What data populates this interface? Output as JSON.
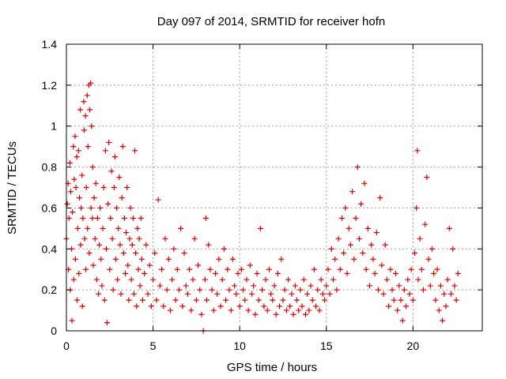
{
  "chart_data": {
    "type": "scatter",
    "title": "Day 097 of 2014, SRMTID for receiver hofn",
    "xlabel": "GPS time / hours",
    "ylabel": "SRMTID / TECUs",
    "xlim": [
      0,
      24
    ],
    "ylim": [
      0,
      1.4
    ],
    "xticks": [
      0,
      5,
      10,
      15,
      20
    ],
    "xtick_labels": [
      "0",
      "5",
      "10",
      "15",
      "20"
    ],
    "yticks": [
      0,
      0.2,
      0.4,
      0.6,
      0.8,
      1,
      1.2,
      1.4
    ],
    "ytick_labels": [
      "0",
      "0.2",
      "0.4",
      "0.6",
      "0.8",
      "1",
      "1.2",
      "1.4"
    ],
    "grid": true,
    "marker": "+",
    "colors": {
      "series": "#e00000",
      "grid": "#a0a0a0",
      "axis": "#000000"
    },
    "series": [
      {
        "name": "SRMTID",
        "points": [
          [
            0.0,
            0.45
          ],
          [
            0.05,
            0.62
          ],
          [
            0.1,
            0.72
          ],
          [
            0.12,
            0.3
          ],
          [
            0.15,
            0.55
          ],
          [
            0.2,
            0.82
          ],
          [
            0.22,
            0.2
          ],
          [
            0.25,
            0.68
          ],
          [
            0.3,
            0.4
          ],
          [
            0.32,
            0.05
          ],
          [
            0.35,
            0.58
          ],
          [
            0.4,
            0.9
          ],
          [
            0.42,
            0.25
          ],
          [
            0.45,
            0.74
          ],
          [
            0.5,
            0.95
          ],
          [
            0.52,
            0.35
          ],
          [
            0.55,
            0.7
          ],
          [
            0.6,
            0.85
          ],
          [
            0.62,
            0.15
          ],
          [
            0.65,
            0.5
          ],
          [
            0.7,
            0.88
          ],
          [
            0.72,
            0.28
          ],
          [
            0.75,
            0.65
          ],
          [
            0.8,
            1.08
          ],
          [
            0.82,
            0.42
          ],
          [
            0.85,
            0.6
          ],
          [
            0.9,
            0.76
          ],
          [
            0.92,
            0.12
          ],
          [
            0.95,
            0.55
          ],
          [
            1.0,
            1.12
          ],
          [
            1.02,
            0.98
          ],
          [
            1.05,
            0.45
          ],
          [
            1.1,
            1.05
          ],
          [
            1.12,
            0.3
          ],
          [
            1.15,
            0.7
          ],
          [
            1.2,
            1.15
          ],
          [
            1.22,
            0.5
          ],
          [
            1.25,
            0.9
          ],
          [
            1.3,
            1.2
          ],
          [
            1.32,
            0.38
          ],
          [
            1.35,
            1.08
          ],
          [
            1.4,
            1.21
          ],
          [
            1.42,
            0.6
          ],
          [
            1.45,
            1.0
          ],
          [
            1.5,
            0.55
          ],
          [
            1.52,
            0.8
          ],
          [
            1.55,
            0.32
          ],
          [
            1.6,
            0.65
          ],
          [
            1.65,
            0.45
          ],
          [
            1.7,
            0.72
          ],
          [
            1.75,
            0.25
          ],
          [
            1.8,
            0.55
          ],
          [
            1.85,
            0.18
          ],
          [
            1.9,
            0.42
          ],
          [
            1.95,
            0.6
          ],
          [
            2.0,
            0.35
          ],
          [
            2.05,
            0.22
          ],
          [
            2.1,
            0.5
          ],
          [
            2.15,
            0.7
          ],
          [
            2.2,
            0.15
          ],
          [
            2.25,
            0.88
          ],
          [
            2.3,
            0.4
          ],
          [
            2.35,
            0.04
          ],
          [
            2.4,
            0.62
          ],
          [
            2.45,
            0.92
          ],
          [
            2.5,
            0.3
          ],
          [
            2.55,
            0.55
          ],
          [
            2.6,
            0.78
          ],
          [
            2.65,
            0.45
          ],
          [
            2.7,
            0.2
          ],
          [
            2.75,
            0.7
          ],
          [
            2.8,
            0.85
          ],
          [
            2.85,
            0.35
          ],
          [
            2.9,
            0.6
          ],
          [
            2.95,
            0.25
          ],
          [
            3.0,
            0.5
          ],
          [
            3.05,
            0.75
          ],
          [
            3.1,
            0.42
          ],
          [
            3.15,
            0.18
          ],
          [
            3.2,
            0.65
          ],
          [
            3.25,
            0.9
          ],
          [
            3.3,
            0.38
          ],
          [
            3.35,
            0.55
          ],
          [
            3.4,
            0.28
          ],
          [
            3.45,
            0.48
          ],
          [
            3.5,
            0.7
          ],
          [
            3.55,
            0.32
          ],
          [
            3.6,
            0.15
          ],
          [
            3.65,
            0.45
          ],
          [
            3.7,
            0.6
          ],
          [
            3.75,
            0.25
          ],
          [
            3.8,
            0.42
          ],
          [
            3.85,
            0.55
          ],
          [
            3.9,
            0.18
          ],
          [
            3.95,
            0.88
          ],
          [
            4.0,
            0.38
          ],
          [
            4.05,
            0.12
          ],
          [
            4.1,
            0.5
          ],
          [
            4.15,
            0.3
          ],
          [
            4.2,
            0.45
          ],
          [
            4.25,
            0.22
          ],
          [
            4.3,
            0.55
          ],
          [
            4.35,
            0.35
          ],
          [
            4.4,
            0.15
          ],
          [
            4.5,
            0.28
          ],
          [
            4.6,
            0.42
          ],
          [
            4.7,
            0.18
          ],
          [
            4.8,
            0.32
          ],
          [
            4.9,
            0.12
          ],
          [
            5.0,
            0.25
          ],
          [
            5.1,
            0.38
          ],
          [
            5.2,
            0.15
          ],
          [
            5.3,
            0.64
          ],
          [
            5.4,
            0.22
          ],
          [
            5.5,
            0.3
          ],
          [
            5.6,
            0.12
          ],
          [
            5.7,
            0.45
          ],
          [
            5.8,
            0.2
          ],
          [
            5.9,
            0.35
          ],
          [
            6.0,
            0.1
          ],
          [
            6.1,
            0.25
          ],
          [
            6.2,
            0.4
          ],
          [
            6.3,
            0.15
          ],
          [
            6.4,
            0.3
          ],
          [
            6.5,
            0.2
          ],
          [
            6.6,
            0.5
          ],
          [
            6.7,
            0.12
          ],
          [
            6.8,
            0.38
          ],
          [
            6.9,
            0.22
          ],
          [
            7.0,
            0.18
          ],
          [
            7.1,
            0.3
          ],
          [
            7.2,
            0.1
          ],
          [
            7.3,
            0.25
          ],
          [
            7.4,
            0.45
          ],
          [
            7.5,
            0.15
          ],
          [
            7.6,
            0.32
          ],
          [
            7.7,
            0.2
          ],
          [
            7.8,
            0.08
          ],
          [
            7.9,
            0.0
          ],
          [
            8.0,
            0.25
          ],
          [
            8.05,
            0.55
          ],
          [
            8.1,
            0.15
          ],
          [
            8.2,
            0.42
          ],
          [
            8.3,
            0.3
          ],
          [
            8.4,
            0.2
          ],
          [
            8.5,
            0.1
          ],
          [
            8.6,
            0.28
          ],
          [
            8.7,
            0.18
          ],
          [
            8.8,
            0.35
          ],
          [
            8.9,
            0.12
          ],
          [
            9.0,
            0.25
          ],
          [
            9.1,
            0.4
          ],
          [
            9.2,
            0.15
          ],
          [
            9.3,
            0.3
          ],
          [
            9.4,
            0.2
          ],
          [
            9.5,
            0.1
          ],
          [
            9.6,
            0.35
          ],
          [
            9.7,
            0.22
          ],
          [
            9.8,
            0.18
          ],
          [
            9.9,
            0.28
          ],
          [
            10.0,
            0.12
          ],
          [
            10.1,
            0.3
          ],
          [
            10.2,
            0.2
          ],
          [
            10.3,
            0.15
          ],
          [
            10.4,
            0.25
          ],
          [
            10.5,
            0.1
          ],
          [
            10.6,
            0.32
          ],
          [
            10.7,
            0.18
          ],
          [
            10.8,
            0.22
          ],
          [
            10.9,
            0.08
          ],
          [
            11.0,
            0.28
          ],
          [
            11.1,
            0.15
          ],
          [
            11.2,
            0.5
          ],
          [
            11.3,
            0.2
          ],
          [
            11.4,
            0.12
          ],
          [
            11.5,
            0.25
          ],
          [
            11.6,
            0.1
          ],
          [
            11.7,
            0.3
          ],
          [
            11.8,
            0.18
          ],
          [
            11.9,
            0.15
          ],
          [
            12.0,
            0.22
          ],
          [
            12.1,
            0.08
          ],
          [
            12.2,
            0.28
          ],
          [
            12.3,
            0.12
          ],
          [
            12.4,
            0.35
          ],
          [
            12.5,
            0.15
          ],
          [
            12.6,
            0.2
          ],
          [
            12.7,
            0.1
          ],
          [
            12.8,
            0.25
          ],
          [
            12.9,
            0.12
          ],
          [
            13.0,
            0.18
          ],
          [
            13.1,
            0.08
          ],
          [
            13.2,
            0.22
          ],
          [
            13.3,
            0.15
          ],
          [
            13.4,
            0.1
          ],
          [
            13.5,
            0.2
          ],
          [
            13.6,
            0.12
          ],
          [
            13.7,
            0.25
          ],
          [
            13.8,
            0.08
          ],
          [
            13.9,
            0.18
          ],
          [
            14.0,
            0.1
          ],
          [
            14.1,
            0.22
          ],
          [
            14.2,
            0.15
          ],
          [
            14.3,
            0.3
          ],
          [
            14.4,
            0.12
          ],
          [
            14.5,
            0.2
          ],
          [
            14.6,
            0.1
          ],
          [
            14.7,
            0.25
          ],
          [
            14.8,
            0.18
          ],
          [
            14.9,
            0.15
          ],
          [
            15.0,
            0.22
          ],
          [
            15.1,
            0.3
          ],
          [
            15.2,
            0.18
          ],
          [
            15.3,
            0.4
          ],
          [
            15.4,
            0.25
          ],
          [
            15.5,
            0.35
          ],
          [
            15.6,
            0.2
          ],
          [
            15.7,
            0.45
          ],
          [
            15.8,
            0.3
          ],
          [
            15.9,
            0.55
          ],
          [
            16.0,
            0.38
          ],
          [
            16.1,
            0.6
          ],
          [
            16.2,
            0.28
          ],
          [
            16.3,
            0.5
          ],
          [
            16.4,
            0.42
          ],
          [
            16.5,
            0.68
          ],
          [
            16.6,
            0.35
          ],
          [
            16.7,
            0.55
          ],
          [
            16.8,
            0.8
          ],
          [
            16.9,
            0.45
          ],
          [
            17.0,
            0.62
          ],
          [
            17.1,
            0.38
          ],
          [
            17.2,
            0.72
          ],
          [
            17.3,
            0.3
          ],
          [
            17.4,
            0.5
          ],
          [
            17.5,
            0.22
          ],
          [
            17.6,
            0.42
          ],
          [
            17.7,
            0.35
          ],
          [
            17.8,
            0.28
          ],
          [
            17.9,
            0.48
          ],
          [
            18.0,
            0.2
          ],
          [
            18.1,
            0.65
          ],
          [
            18.2,
            0.32
          ],
          [
            18.3,
            0.18
          ],
          [
            18.4,
            0.42
          ],
          [
            18.5,
            0.25
          ],
          [
            18.6,
            0.12
          ],
          [
            18.7,
            0.3
          ],
          [
            18.8,
            0.2
          ],
          [
            18.9,
            0.15
          ],
          [
            19.0,
            0.28
          ],
          [
            19.1,
            0.1
          ],
          [
            19.2,
            0.22
          ],
          [
            19.3,
            0.15
          ],
          [
            19.4,
            0.05
          ],
          [
            19.5,
            0.2
          ],
          [
            19.6,
            0.12
          ],
          [
            19.7,
            0.25
          ],
          [
            19.8,
            0.18
          ],
          [
            19.9,
            0.3
          ],
          [
            20.0,
            0.15
          ],
          [
            20.1,
            0.38
          ],
          [
            20.2,
            0.6
          ],
          [
            20.25,
            0.88
          ],
          [
            20.3,
            0.25
          ],
          [
            20.4,
            0.45
          ],
          [
            20.5,
            0.3
          ],
          [
            20.6,
            0.2
          ],
          [
            20.7,
            0.52
          ],
          [
            20.8,
            0.75
          ],
          [
            20.9,
            0.35
          ],
          [
            21.0,
            0.22
          ],
          [
            21.1,
            0.4
          ],
          [
            21.2,
            0.28
          ],
          [
            21.3,
            0.15
          ],
          [
            21.4,
            0.3
          ],
          [
            21.5,
            0.1
          ],
          [
            21.6,
            0.22
          ],
          [
            21.7,
            0.05
          ],
          [
            21.8,
            0.18
          ],
          [
            21.9,
            0.12
          ],
          [
            22.0,
            0.25
          ],
          [
            22.1,
            0.5
          ],
          [
            22.2,
            0.18
          ],
          [
            22.3,
            0.4
          ],
          [
            22.4,
            0.22
          ],
          [
            22.5,
            0.15
          ],
          [
            22.6,
            0.28
          ]
        ]
      }
    ]
  }
}
